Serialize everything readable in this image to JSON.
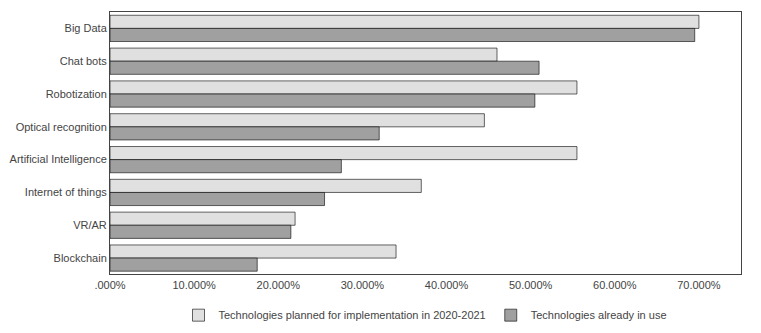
{
  "chart_data": {
    "type": "bar",
    "orientation": "horizontal",
    "categories": [
      "Big Data",
      "Chat bots",
      "Robotization",
      "Optical recognition",
      "Artificial Intelligence",
      "Internet of things",
      "VR/AR",
      "Blockchain"
    ],
    "series": [
      {
        "name": "Technologies planned for implementation in 2020-2021",
        "color": "#e0e0e0",
        "values": [
          0.7,
          0.46,
          0.555,
          0.445,
          0.555,
          0.37,
          0.22,
          0.34
        ]
      },
      {
        "name": "Technologies already in use",
        "color": "#a0a0a0",
        "values": [
          0.695,
          0.51,
          0.505,
          0.32,
          0.275,
          0.255,
          0.215,
          0.175
        ]
      }
    ],
    "xlim": [
      0,
      0.75
    ],
    "xticks": [
      {
        "value": 0.0,
        "label": ".000%"
      },
      {
        "value": 0.1,
        "label": "10.000%"
      },
      {
        "value": 0.2,
        "label": "20.000%"
      },
      {
        "value": 0.3,
        "label": "30.000%"
      },
      {
        "value": 0.4,
        "label": "40.000%"
      },
      {
        "value": 0.5,
        "label": "50.000%"
      },
      {
        "value": 0.6,
        "label": "60.000%"
      },
      {
        "value": 0.7,
        "label": "70.000%"
      }
    ],
    "grid": true,
    "legend": "bottom"
  }
}
